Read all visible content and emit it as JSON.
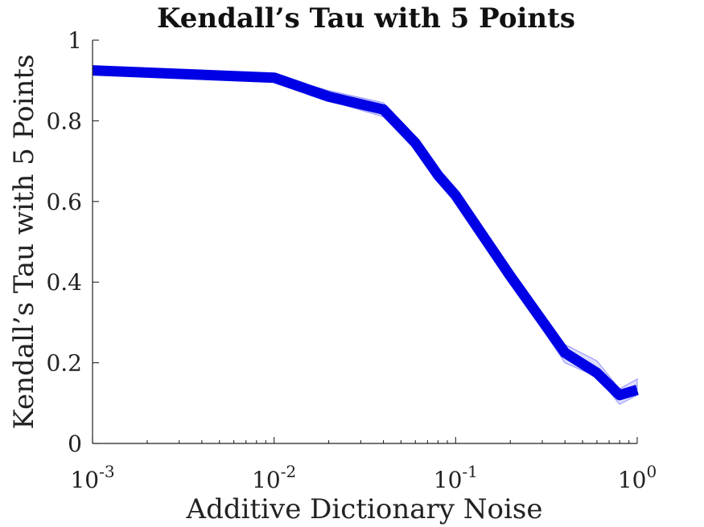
{
  "chart_data": {
    "type": "line",
    "title": "Kendall’s Tau with 5 Points",
    "xlabel": "Additive Dictionary Noise",
    "ylabel": "Kendall’s Tau with 5 Points",
    "xscale": "log",
    "xlim": [
      0.001,
      1
    ],
    "ylim": [
      0,
      1
    ],
    "x_ticks": [
      {
        "value": 0.001,
        "base": "10",
        "exp": "-3"
      },
      {
        "value": 0.01,
        "base": "10",
        "exp": "-2"
      },
      {
        "value": 0.1,
        "base": "10",
        "exp": "-1"
      },
      {
        "value": 1,
        "base": "10",
        "exp": "0"
      }
    ],
    "y_ticks": [
      {
        "value": 0,
        "label": "0"
      },
      {
        "value": 0.2,
        "label": "0.2"
      },
      {
        "value": 0.4,
        "label": "0.4"
      },
      {
        "value": 0.6,
        "label": "0.6"
      },
      {
        "value": 0.8,
        "label": "0.8"
      },
      {
        "value": 1,
        "label": "1"
      }
    ],
    "grid": false,
    "color": "#0000e6",
    "band_color": "#4a4aff",
    "series": [
      {
        "x": [
          0.001,
          0.01,
          0.02,
          0.04,
          0.06,
          0.08,
          0.1,
          0.2,
          0.4,
          0.6,
          0.8,
          1.0
        ],
        "values": [
          0.925,
          0.907,
          0.86,
          0.828,
          0.745,
          0.665,
          0.615,
          0.415,
          0.225,
          0.175,
          0.12,
          0.133
        ],
        "lower": [
          0.915,
          0.898,
          0.85,
          0.81,
          0.73,
          0.65,
          0.6,
          0.4,
          0.2,
          0.165,
          0.097,
          0.12
        ],
        "upper": [
          0.935,
          0.915,
          0.875,
          0.845,
          0.76,
          0.68,
          0.63,
          0.43,
          0.245,
          0.205,
          0.135,
          0.16
        ]
      }
    ]
  }
}
